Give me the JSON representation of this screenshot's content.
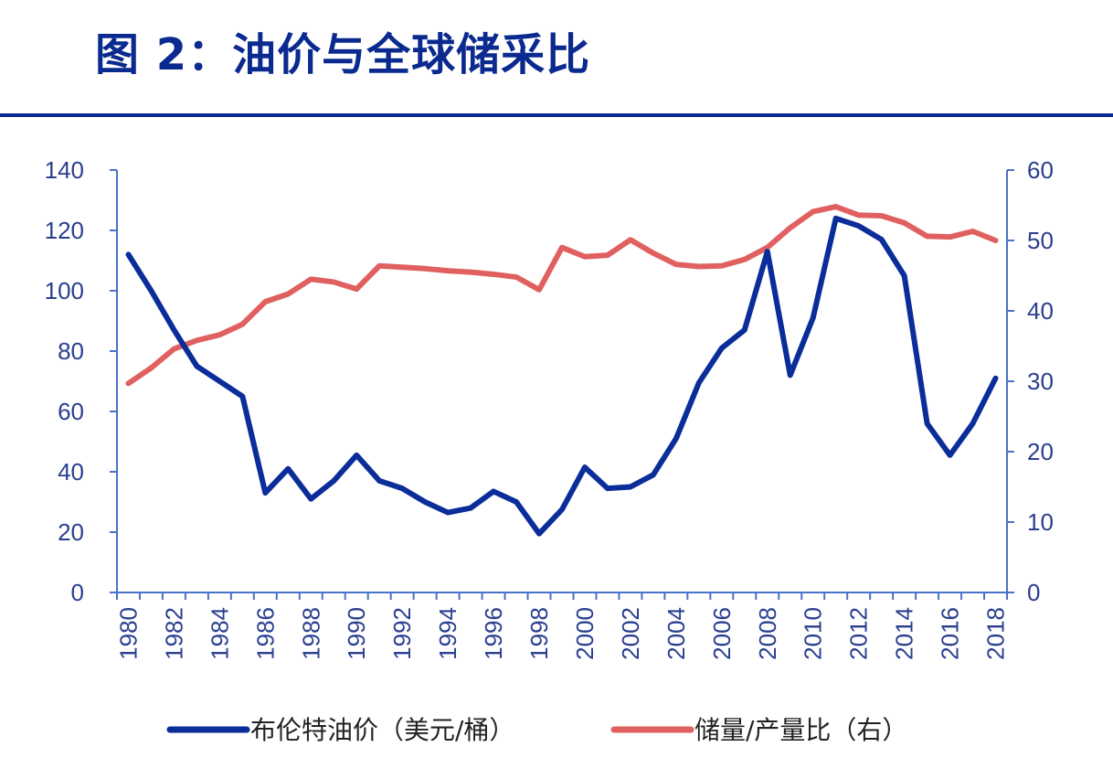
{
  "title": "图 2：油价与全球储采比",
  "colors": {
    "title": "#0b2a8f",
    "rule": "#0b2a8f",
    "axis": "#4a72c8",
    "tick_text": "#2a3f8f",
    "legend_text": "#222222"
  },
  "chart_data": {
    "type": "line",
    "x": [
      1980,
      1981,
      1982,
      1983,
      1984,
      1985,
      1986,
      1987,
      1988,
      1989,
      1990,
      1991,
      1992,
      1993,
      1994,
      1995,
      1996,
      1997,
      1998,
      1999,
      2000,
      2001,
      2002,
      2003,
      2004,
      2005,
      2006,
      2007,
      2008,
      2009,
      2010,
      2011,
      2012,
      2013,
      2014,
      2015,
      2016,
      2017,
      2018
    ],
    "x_tick_labels": [
      "1980",
      "1982",
      "1984",
      "1986",
      "1988",
      "1990",
      "1992",
      "1994",
      "1996",
      "1998",
      "2000",
      "2002",
      "2004",
      "2006",
      "2008",
      "2010",
      "2012",
      "2014",
      "2016",
      "2018"
    ],
    "y_left": {
      "ylim": [
        0,
        140
      ],
      "ticks": [
        "0",
        "20",
        "40",
        "60",
        "80",
        "100",
        "120",
        "140"
      ]
    },
    "y_right": {
      "ylim": [
        0,
        60
      ],
      "ticks": [
        "0",
        "10",
        "20",
        "30",
        "40",
        "50",
        "60"
      ]
    },
    "series": [
      {
        "name": "布伦特油价（美元/桶）",
        "axis": "left",
        "color": "#0a2d9a",
        "values": [
          112,
          100,
          87,
          75,
          70,
          65,
          33,
          41,
          31,
          37,
          45.5,
          37,
          34.5,
          30,
          26.5,
          28,
          33.5,
          30,
          19.5,
          27.5,
          41.5,
          34.5,
          35,
          39,
          51,
          69.5,
          81,
          87,
          113,
          72,
          91,
          124,
          121.5,
          117,
          105,
          56,
          45.5,
          56,
          71
        ]
      },
      {
        "name": "储量/产量比（右）",
        "axis": "right",
        "color": "#e06060",
        "values": [
          29.7,
          31.9,
          34.6,
          35.8,
          36.6,
          38.1,
          41.3,
          42.4,
          44.5,
          44.1,
          43.1,
          46.4,
          46.2,
          46.0,
          45.7,
          45.5,
          45.2,
          44.8,
          43.0,
          49.0,
          47.7,
          47.9,
          50.1,
          48.2,
          46.6,
          46.3,
          46.4,
          47.3,
          49.0,
          51.8,
          54.1,
          54.8,
          53.6,
          53.5,
          52.5,
          50.6,
          50.5,
          51.3,
          50.0
        ]
      }
    ],
    "legend_position": "bottom"
  }
}
